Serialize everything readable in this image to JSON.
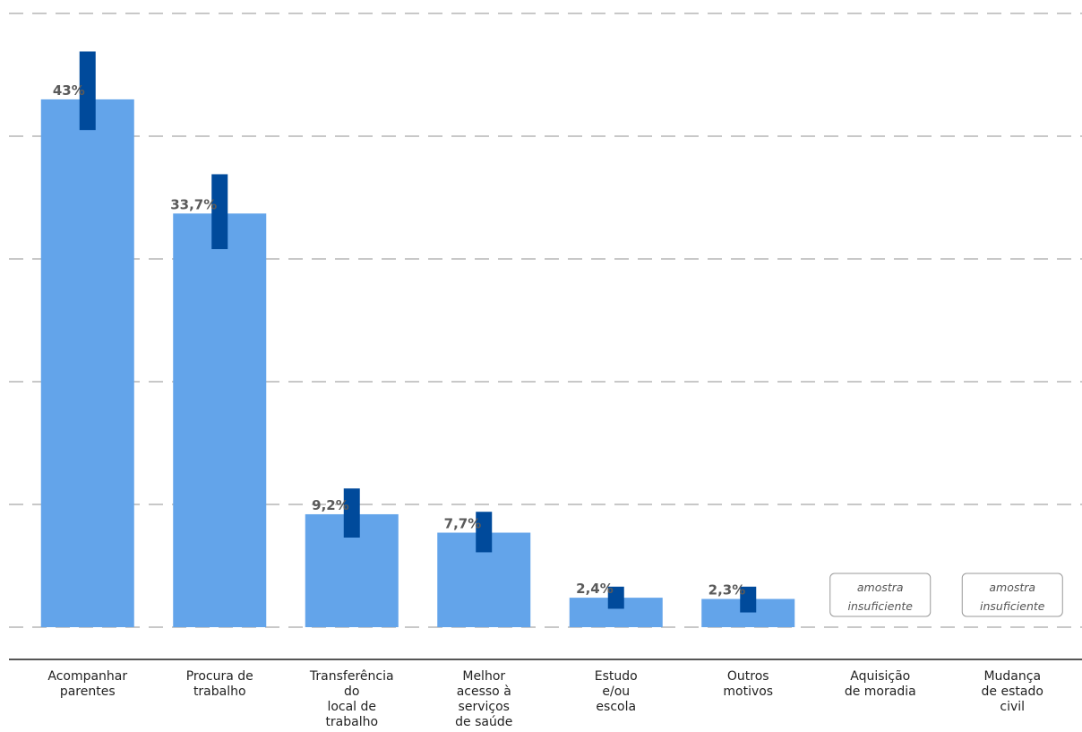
{
  "chart_data": {
    "type": "bar",
    "title": "",
    "xlabel": "",
    "ylabel": "",
    "ylim": [
      0,
      50
    ],
    "grid": true,
    "categories": [
      "Acompanhar parentes",
      "Procura de trabalho",
      "Transferência do local de trabalho",
      "Melhor acesso à serviços de saúde",
      "Estudo e/ou escola",
      "Outros motivos",
      "Aquisição de moradia",
      "Mudança de estado civil"
    ],
    "category_lines": [
      [
        "Acompanhar",
        "parentes"
      ],
      [
        "Procura de",
        "trabalho"
      ],
      [
        "Transferência",
        "do",
        "local de",
        "trabalho"
      ],
      [
        "Melhor",
        "acesso à",
        "serviços",
        "de saúde"
      ],
      [
        "Estudo",
        "e/ou",
        "escola"
      ],
      [
        "Outros",
        "motivos"
      ],
      [
        "Aquisição",
        "de moradia"
      ],
      [
        "Mudança",
        "de estado",
        "civil"
      ]
    ],
    "values": [
      43,
      33.7,
      9.2,
      7.7,
      2.4,
      2.3,
      null,
      null
    ],
    "value_labels": [
      "43%",
      "33,7%",
      "9,2%",
      "7,7%",
      "2,4%",
      "2,3%",
      "",
      ""
    ],
    "ci_low": [
      40.5,
      30.8,
      7.3,
      6.1,
      1.5,
      1.2,
      null,
      null
    ],
    "ci_high": [
      46.9,
      36.9,
      11.3,
      9.4,
      3.3,
      3.3,
      null,
      null
    ],
    "insufficient_sample_label": [
      "amostra",
      "insuficiente"
    ],
    "colors": {
      "bar": "#63a4ea",
      "error_bar": "#004a9b"
    }
  }
}
